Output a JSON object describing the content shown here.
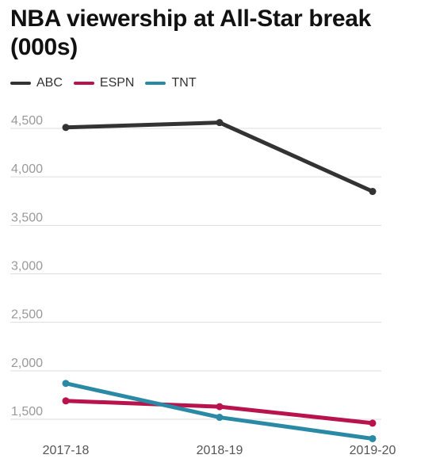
{
  "chart_data": {
    "type": "line",
    "title": "NBA viewership at All-Star break (000s)",
    "xlabel": "",
    "ylabel": "",
    "categories": [
      "2017-18",
      "2018-19",
      "2019-20"
    ],
    "y_ticks": [
      "1,500",
      "2,000",
      "2,500",
      "3,000",
      "3,500",
      "4,000",
      "4,500"
    ],
    "ylim": [
      1300,
      4600
    ],
    "grid": true,
    "legend_position": "top-left",
    "series": [
      {
        "name": "ABC",
        "color": "#333333",
        "values": [
          4510,
          4560,
          3850
        ]
      },
      {
        "name": "ESPN",
        "color": "#b8134c",
        "values": [
          1690,
          1630,
          1460
        ]
      },
      {
        "name": "TNT",
        "color": "#2a8aa5",
        "values": [
          1870,
          1520,
          1300
        ]
      }
    ]
  }
}
